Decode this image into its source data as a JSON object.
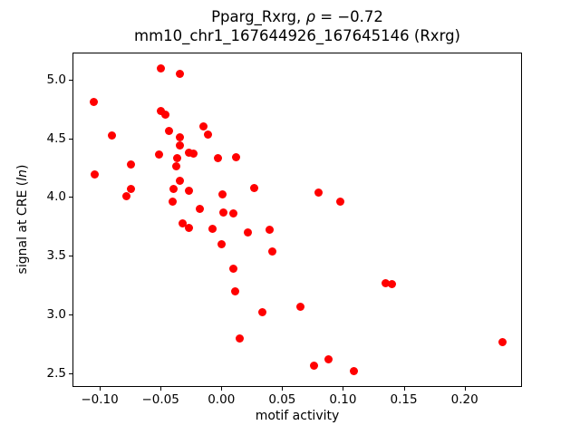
{
  "title": {
    "line1_prefix": "Pparg_Rxrg, ",
    "line1_rho": "ρ",
    "line1_value": " = −0.72",
    "line2": "mm10_chr1_167644926_167645146 (Rxrg)"
  },
  "axes": {
    "xlabel": "motif activity",
    "ylabel_prefix": "signal at CRE (",
    "ylabel_italic": "ln",
    "ylabel_suffix": ")"
  },
  "chart_data": {
    "type": "scatter",
    "title": "Pparg_Rxrg, ρ = −0.72\nmm10_chr1_167644926_167645146 (Rxrg)",
    "xlabel": "motif activity",
    "ylabel": "signal at CRE (ln)",
    "marker_color": "#ff0000",
    "grid": false,
    "legend": null,
    "xlim": [
      -0.1224,
      0.2472
    ],
    "ylim": [
      2.386,
      5.228
    ],
    "x_ticks": [
      -0.1,
      -0.05,
      0.0,
      0.05,
      0.1,
      0.15,
      0.2
    ],
    "x_tick_labels": [
      "−0.10",
      "−0.05",
      "0.00",
      "0.05",
      "0.10",
      "0.15",
      "0.20"
    ],
    "y_ticks": [
      2.5,
      3.0,
      3.5,
      4.0,
      4.5,
      5.0
    ],
    "y_tick_labels": [
      "2.5",
      "3.0",
      "3.5",
      "4.0",
      "4.5",
      "5.0"
    ],
    "points": [
      [
        -0.05,
        5.09
      ],
      [
        -0.034,
        5.05
      ],
      [
        -0.105,
        4.81
      ],
      [
        -0.05,
        4.73
      ],
      [
        -0.046,
        4.7
      ],
      [
        -0.043,
        4.56
      ],
      [
        -0.09,
        4.52
      ],
      [
        -0.034,
        4.51
      ],
      [
        -0.034,
        4.44
      ],
      [
        -0.015,
        4.6
      ],
      [
        -0.011,
        4.53
      ],
      [
        -0.051,
        4.36
      ],
      [
        -0.036,
        4.33
      ],
      [
        -0.027,
        4.38
      ],
      [
        -0.023,
        4.37
      ],
      [
        -0.037,
        4.26
      ],
      [
        -0.074,
        4.28
      ],
      [
        -0.104,
        4.19
      ],
      [
        -0.003,
        4.33
      ],
      [
        -0.034,
        4.14
      ],
      [
        -0.039,
        4.07
      ],
      [
        -0.027,
        4.05
      ],
      [
        -0.074,
        4.07
      ],
      [
        -0.078,
        4.01
      ],
      [
        -0.04,
        3.96
      ],
      [
        -0.018,
        3.9
      ],
      [
        0.001,
        4.02
      ],
      [
        0.012,
        4.34
      ],
      [
        0.027,
        4.08
      ],
      [
        0.08,
        4.04
      ],
      [
        0.098,
        3.96
      ],
      [
        0.002,
        3.87
      ],
      [
        0.01,
        3.86
      ],
      [
        -0.032,
        3.78
      ],
      [
        -0.027,
        3.74
      ],
      [
        -0.007,
        3.73
      ],
      [
        0.0,
        3.6
      ],
      [
        0.022,
        3.7
      ],
      [
        0.04,
        3.72
      ],
      [
        0.042,
        3.54
      ],
      [
        0.01,
        3.39
      ],
      [
        0.011,
        3.2
      ],
      [
        0.065,
        3.07
      ],
      [
        0.034,
        3.02
      ],
      [
        0.015,
        2.8
      ],
      [
        0.076,
        2.57
      ],
      [
        0.088,
        2.62
      ],
      [
        0.109,
        2.52
      ],
      [
        0.135,
        3.27
      ],
      [
        0.14,
        3.26
      ],
      [
        0.231,
        2.77
      ]
    ]
  }
}
